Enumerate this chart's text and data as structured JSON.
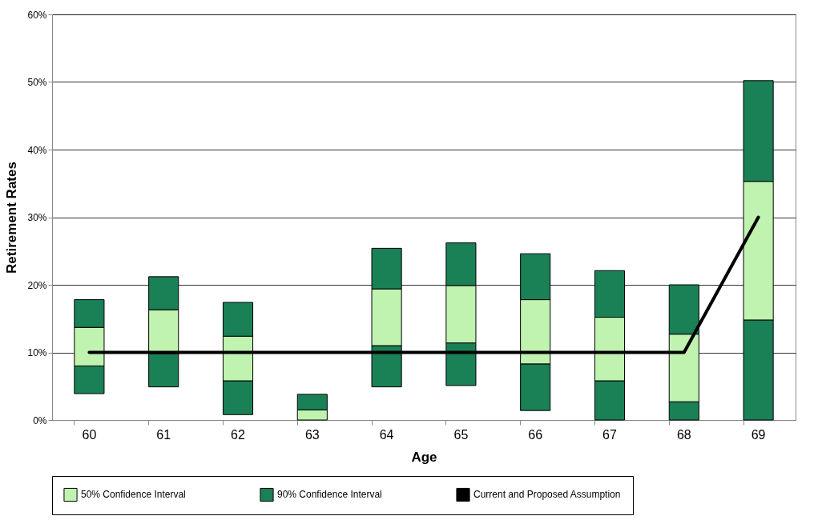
{
  "chart_data": {
    "type": "bar",
    "xlabel": "Age",
    "ylabel": "Retirement Rates",
    "categories": [
      "60",
      "61",
      "62",
      "63",
      "64",
      "65",
      "66",
      "67",
      "68",
      "69"
    ],
    "series": [
      {
        "color": "#1a8055",
        "base": [
          3.9,
          4.9,
          0.8,
          null,
          4.9,
          5.1,
          1.4,
          0,
          0,
          0
        ],
        "values": [
          4.1,
          4.9,
          5.0,
          null,
          6.1,
          6.3,
          6.9,
          5.8,
          2.7,
          14.8
        ]
      },
      {
        "name": "50% Confidence Interval",
        "color": "#c0f2b0",
        "base": [
          8.0,
          9.8,
          5.8,
          0,
          11.0,
          11.4,
          8.3,
          5.8,
          2.7,
          14.8
        ],
        "values": [
          5.7,
          6.5,
          6.6,
          1.5,
          8.4,
          8.5,
          9.5,
          9.4,
          10.0,
          20.5
        ]
      },
      {
        "name": "90% Confidence Interval",
        "color": "#1a8055",
        "base": [
          13.7,
          16.3,
          12.4,
          1.5,
          19.4,
          19.9,
          17.8,
          15.2,
          12.7,
          35.3
        ],
        "values": [
          4.1,
          4.9,
          5.0,
          2.3,
          6.0,
          6.3,
          6.8,
          6.9,
          7.3,
          14.9
        ]
      },
      {
        "name": "Current and Proposed Assumption",
        "type": "line",
        "color": "#000000",
        "values": [
          10,
          10,
          10,
          10,
          10,
          10,
          10,
          10,
          10,
          30
        ]
      }
    ],
    "ylim": [
      0,
      60
    ],
    "yticks": [
      {
        "value": 0,
        "label": "0%"
      },
      {
        "value": 10,
        "label": "10%"
      },
      {
        "value": 20,
        "label": "20%"
      },
      {
        "value": 30,
        "label": "30%"
      },
      {
        "value": 40,
        "label": "40%"
      },
      {
        "value": 50,
        "label": "50%"
      },
      {
        "value": 60,
        "label": "60%"
      }
    ],
    "grid": "y",
    "legend": "bottom"
  }
}
